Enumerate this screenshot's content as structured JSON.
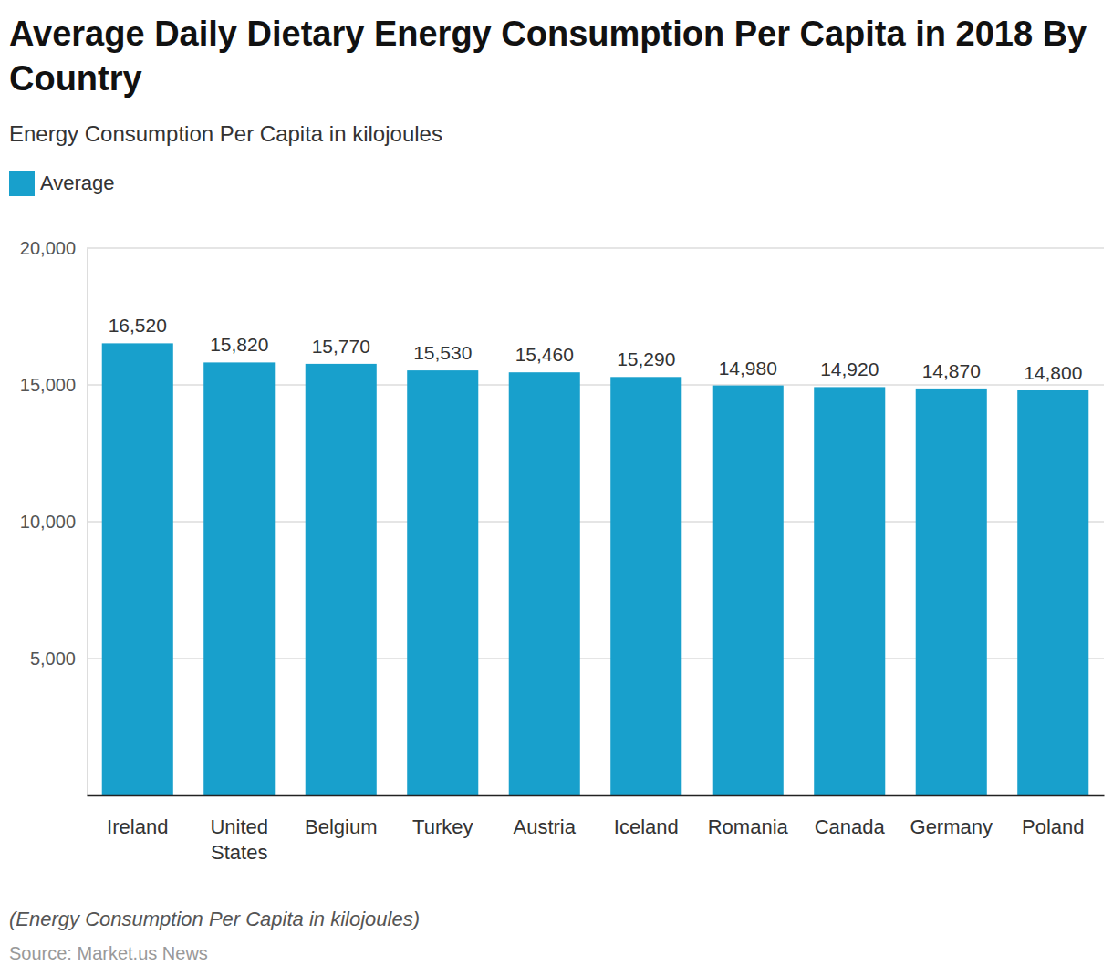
{
  "chart_data": {
    "type": "bar",
    "title": "Average Daily Dietary Energy Consumption Per Capita in 2018 By Country",
    "subtitle": "Energy Consumption Per Capita in kilojoules",
    "note": "(Energy Consumption Per Capita in kilojoules)",
    "source": "Source: Market.us News",
    "categories": [
      "Ireland",
      "United States",
      "Belgium",
      "Turkey",
      "Austria",
      "Iceland",
      "Romania",
      "Canada",
      "Germany",
      "Poland"
    ],
    "series": [
      {
        "name": "Average",
        "color": "#18a0cc",
        "values": [
          16520,
          15820,
          15770,
          15530,
          15460,
          15290,
          14980,
          14920,
          14870,
          14800
        ],
        "value_labels": [
          "16,520",
          "15,820",
          "15,770",
          "15,530",
          "15,460",
          "15,290",
          "14,980",
          "14,920",
          "14,870",
          "14,800"
        ]
      }
    ],
    "ylim": [
      0,
      20000
    ],
    "yticks": [
      {
        "value": 5000,
        "label": "5,000"
      },
      {
        "value": 10000,
        "label": "10,000"
      },
      {
        "value": 15000,
        "label": "15,000"
      },
      {
        "value": 20000,
        "label": "20,000"
      }
    ],
    "grid": true,
    "legend": "top-left",
    "data_labels": true
  }
}
